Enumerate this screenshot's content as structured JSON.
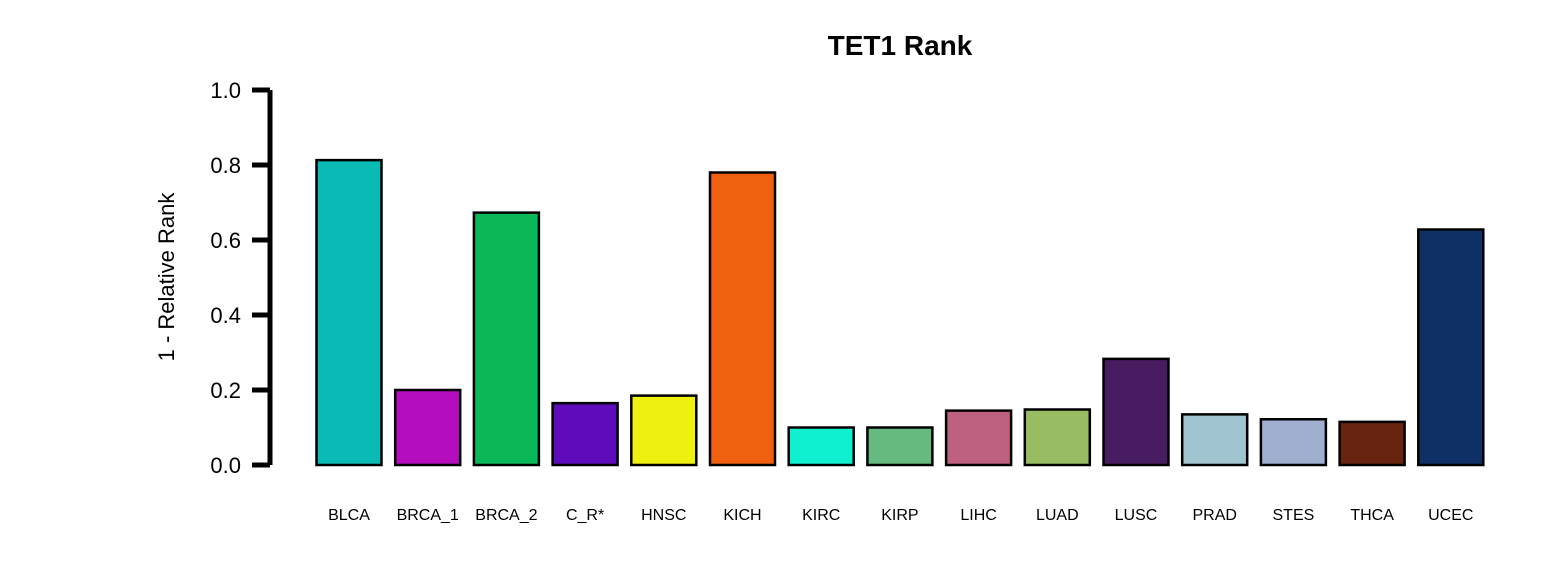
{
  "chart_data": {
    "type": "bar",
    "title": "TET1 Rank",
    "xlabel": "",
    "ylabel": "1 - Relative Rank",
    "ylim": [
      0,
      1
    ],
    "yticks": [
      "0.0",
      "0.2",
      "0.4",
      "0.6",
      "0.8",
      "1.0"
    ],
    "grid": false,
    "categories": [
      "BLCA",
      "BRCA_1",
      "BRCA_2",
      "C_R*",
      "HNSC",
      "KICH",
      "KIRC",
      "KIRP",
      "LIHC",
      "LUAD",
      "LUSC",
      "PRAD",
      "STES",
      "THCA",
      "UCEC"
    ],
    "values": [
      0.813,
      0.2,
      0.673,
      0.165,
      0.185,
      0.78,
      0.1,
      0.1,
      0.145,
      0.148,
      0.283,
      0.135,
      0.122,
      0.115,
      0.628
    ],
    "colors": [
      "#0ABAB5",
      "#B30DBE",
      "#0BB858",
      "#5E0BBC",
      "#EEF00F",
      "#F06010",
      "#0EF0D0",
      "#66BA80",
      "#BE6080",
      "#98BC62",
      "#481C60",
      "#A0C4D0",
      "#A0AED0",
      "#682410",
      "#0E3064"
    ]
  }
}
